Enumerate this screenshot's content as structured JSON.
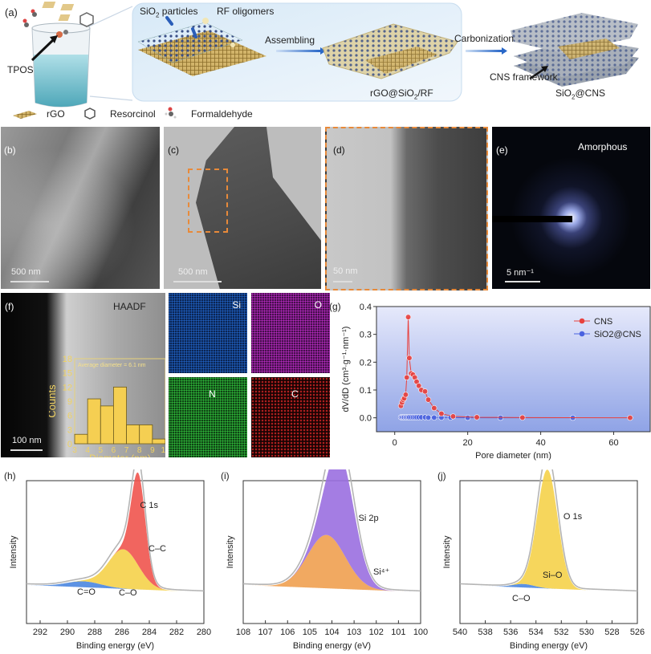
{
  "panel_a": {
    "label": "(a)",
    "tpos": "TPOS",
    "sio2_particles": "SiO2 particles",
    "rf_oligomers": "RF oligomers",
    "assembling": "Assembling",
    "intermediate": "rGO@SiO2/RF",
    "carbonization": "Carbonization",
    "cns_framework": "CNS framework",
    "product": "SiO2@CNS",
    "legend": [
      {
        "icon": "rgo-sheet-icon",
        "label": "rGO"
      },
      {
        "icon": "resorcinol-molecule-icon",
        "label": "Resorcinol"
      },
      {
        "icon": "formaldehyde-molecule-icon",
        "label": "Formaldehyde"
      }
    ]
  },
  "panel_b": {
    "label": "(b)",
    "scale": "500 nm"
  },
  "panel_c": {
    "label": "(c)",
    "scale": "500 nm"
  },
  "panel_d": {
    "label": "(d)",
    "scale": "50 nm"
  },
  "panel_e": {
    "label": "(e)",
    "title": "Amorphous",
    "scale": "5 nm⁻¹"
  },
  "panel_f": {
    "label": "(f)",
    "title": "HAADF",
    "scale": "100 nm",
    "maps": [
      {
        "element": "Si",
        "color": "#2a6fd6"
      },
      {
        "element": "O",
        "color": "#c02ac8"
      },
      {
        "element": "N",
        "color": "#2fbf3a"
      },
      {
        "element": "C",
        "color": "#d02a2a"
      }
    ]
  },
  "chart_data": [
    {
      "id": "f-inset",
      "type": "bar",
      "title": "Average diameter = 6.1 nm",
      "xlabel": "Diameter (nm)",
      "ylabel": "Counts",
      "xticks": [
        "3",
        "4",
        "5",
        "6",
        "7",
        "8",
        "9",
        "10"
      ],
      "yticks": [
        "0",
        "3",
        "6",
        "9",
        "12",
        "15",
        "18"
      ],
      "bins": [
        [
          3,
          4
        ],
        [
          4,
          5
        ],
        [
          5,
          6
        ],
        [
          6,
          7
        ],
        [
          7,
          8
        ],
        [
          8,
          9
        ],
        [
          9,
          10
        ]
      ],
      "values": [
        2,
        9.5,
        8,
        12,
        4,
        4,
        1
      ],
      "ylim": [
        0,
        18
      ],
      "color": "#f5cf52"
    },
    {
      "id": "g",
      "label": "(g)",
      "type": "line",
      "xlabel": "Pore diameter (nm)",
      "ylabel": "dV/dD (cm³·g⁻¹·nm⁻¹)",
      "xlim": [
        -5,
        70
      ],
      "ylim": [
        -0.05,
        0.4
      ],
      "xticks": [
        0,
        20,
        40,
        60
      ],
      "yticks": [
        "0.0",
        "0.1",
        "0.2",
        "0.3",
        "0.4"
      ],
      "legend_position": "top-right",
      "series": [
        {
          "name": "CNS",
          "color": "#e8413e",
          "x": [
            1.7,
            2.0,
            2.3,
            2.6,
            3.0,
            3.3,
            3.7,
            4.0,
            4.5,
            5.0,
            5.5,
            6.0,
            6.6,
            7.3,
            8.3,
            9.2,
            10.8,
            12.8,
            16,
            22.5,
            35,
            64.5
          ],
          "y": [
            0.043,
            0.055,
            0.065,
            0.07,
            0.083,
            0.145,
            0.362,
            0.215,
            0.16,
            0.155,
            0.145,
            0.13,
            0.115,
            0.1,
            0.095,
            0.065,
            0.035,
            0.015,
            0.005,
            0.002,
            0.001,
            0
          ]
        },
        {
          "name": "SiO2@CNS",
          "color": "#4a62e0",
          "x": [
            1.7,
            2.0,
            2.3,
            2.6,
            3.0,
            3.3,
            3.7,
            4.0,
            4.5,
            5.0,
            5.5,
            6.0,
            6.6,
            7.3,
            8.3,
            9.2,
            10.8,
            12.8,
            15.3,
            20,
            29,
            48.8
          ],
          "y": [
            0.002,
            0.002,
            0.002,
            0.002,
            0.002,
            0.002,
            0.002,
            0.002,
            0.002,
            0.002,
            0.002,
            0.002,
            0.002,
            0.002,
            0.002,
            0.001,
            0.001,
            0.001,
            0.001,
            0,
            0,
            0
          ]
        }
      ]
    },
    {
      "id": "h",
      "label": "(h)",
      "type": "area",
      "title": "C 1s",
      "xlabel": "Binding energy (eV)",
      "ylabel": "Intensity",
      "xlim": [
        293,
        280
      ],
      "xticks": [
        292,
        290,
        288,
        286,
        284,
        282,
        280
      ],
      "components": [
        {
          "name": "C=O",
          "center": 288.8,
          "height": 0.05,
          "fwhm": 3.0,
          "color": "#4a86e0"
        },
        {
          "name": "C–O",
          "center": 285.9,
          "height": 0.33,
          "fwhm": 2.6,
          "color": "#f5d24a"
        },
        {
          "name": "C–C",
          "center": 284.8,
          "height": 0.78,
          "fwhm": 1.2,
          "color": "#f0544e"
        }
      ]
    },
    {
      "id": "i",
      "label": "(i)",
      "type": "area",
      "title": "Si 2p",
      "xlabel": "Binding energy (eV)",
      "ylabel": "Intensity",
      "xlim": [
        108,
        100
      ],
      "xticks": [
        108,
        107,
        106,
        105,
        104,
        103,
        102,
        101,
        100
      ],
      "components": [
        {
          "name": "",
          "center": 104.25,
          "height": 0.45,
          "fwhm": 2.0,
          "color": "#f0a050"
        },
        {
          "name": "Si⁴⁺",
          "center": 103.6,
          "height": 0.8,
          "fwhm": 1.5,
          "color": "#9a6fe0"
        }
      ]
    },
    {
      "id": "j",
      "label": "(j)",
      "type": "area",
      "title": "O 1s",
      "xlabel": "Binding energy (eV)",
      "ylabel": "Intensity",
      "xlim": [
        540,
        526
      ],
      "xticks": [
        540,
        538,
        536,
        534,
        532,
        530,
        528,
        526
      ],
      "components": [
        {
          "name": "C–O",
          "center": 535.0,
          "height": 0.03,
          "fwhm": 2.0,
          "color": "#4a86e0"
        },
        {
          "name": "Si–O",
          "center": 533.1,
          "height": 1.0,
          "fwhm": 1.9,
          "color": "#f5d24a"
        }
      ]
    }
  ]
}
